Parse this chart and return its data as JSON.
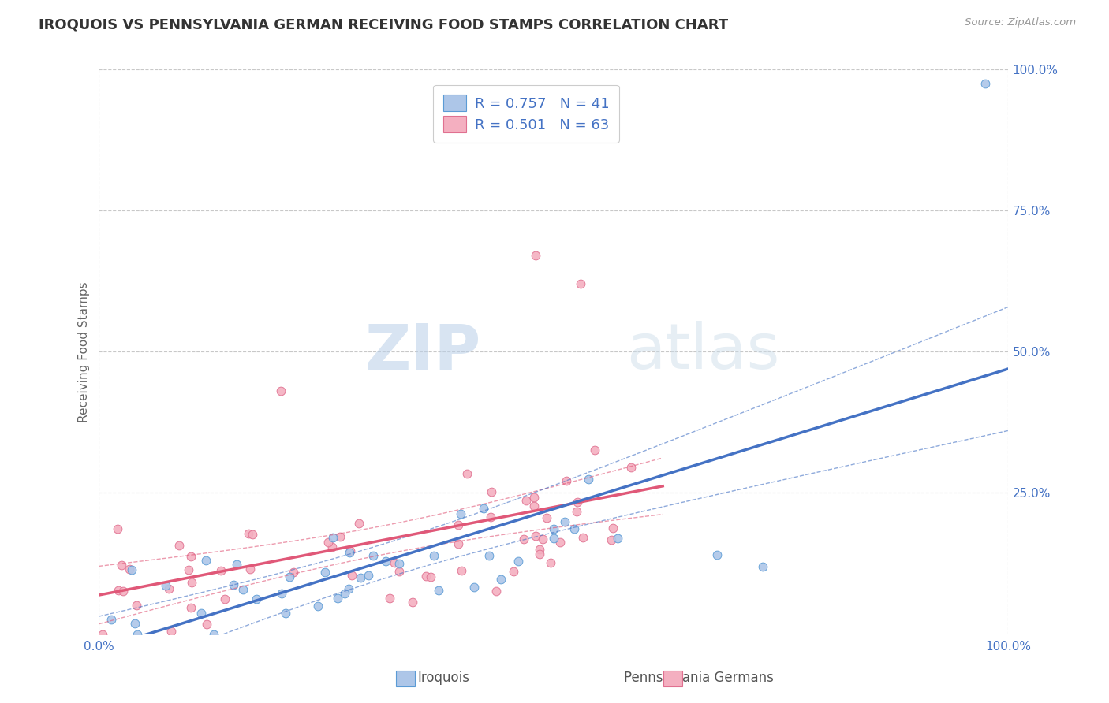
{
  "title": "IROQUOIS VS PENNSYLVANIA GERMAN RECEIVING FOOD STAMPS CORRELATION CHART",
  "source": "Source: ZipAtlas.com",
  "ylabel": "Receiving Food Stamps",
  "xlabel_iroquois": "Iroquois",
  "xlabel_pa_german": "Pennsylvania Germans",
  "r_iroquois": 0.757,
  "n_iroquois": 41,
  "r_pa_german": 0.501,
  "n_pa_german": 63,
  "color_iroquois": "#adc6e8",
  "color_pa_german": "#f4afc0",
  "line_iroquois": "#4472c4",
  "line_pa_german": "#e05878",
  "scatter_iroquois_edge": "#5b9bd5",
  "scatter_pa_german_edge": "#e07090",
  "background_color": "#ffffff",
  "grid_color": "#c8c8c8",
  "watermark_zip": "ZIP",
  "watermark_atlas": "atlas",
  "title_color": "#333333",
  "legend_text_color": "#4472c4",
  "axis_label_color": "#4472c4",
  "xlim": [
    0.0,
    1.0
  ],
  "ylim": [
    0.0,
    1.0
  ],
  "yticks": [
    0.0,
    0.25,
    0.5,
    0.75,
    1.0
  ],
  "ytick_labels": [
    "",
    "25.0%",
    "50.0%",
    "75.0%",
    "100.0%"
  ],
  "xtick_left": "0.0%",
  "xtick_right": "100.0%"
}
